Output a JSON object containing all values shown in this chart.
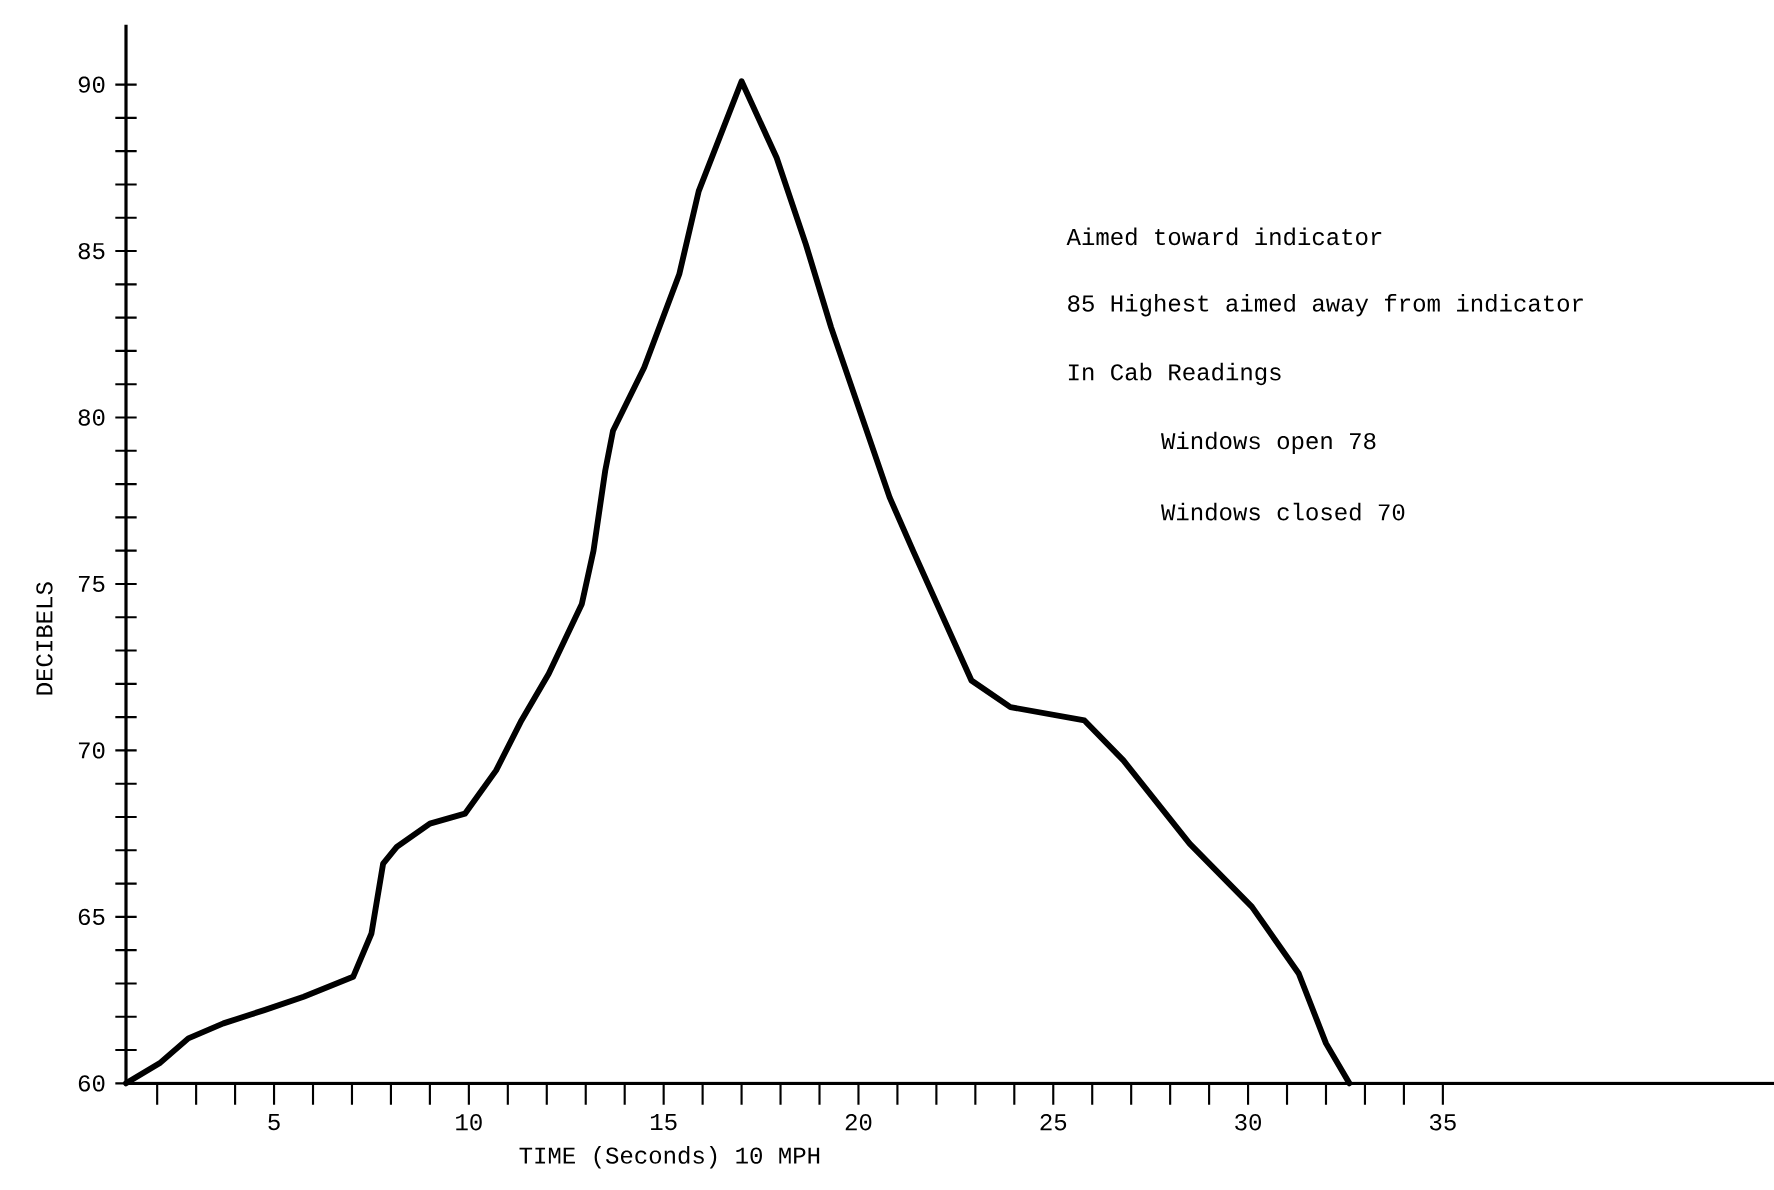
{
  "chart_data": {
    "type": "line",
    "xlabel": "TIME (Seconds)  10 MPH",
    "ylabel": "DECIBELS",
    "x": [
      1.2,
      2.06,
      2.8,
      3.7,
      4.75,
      5.76,
      7.03,
      7.5,
      7.8,
      8.15,
      9.0,
      9.9,
      10.7,
      11.35,
      12.05,
      12.9,
      13.2,
      13.5,
      13.7,
      14.5,
      15.4,
      15.9,
      17.0,
      17.9,
      18.65,
      19.3,
      20.8,
      21.4,
      22.9,
      23.9,
      25.8,
      26.8,
      28.5,
      30.1,
      31.3,
      32.0,
      32.6
    ],
    "series": [
      {
        "color": "#000000",
        "values": [
          60,
          60.6,
          61.35,
          61.8,
          62.2,
          62.6,
          63.2,
          64.5,
          66.6,
          67.1,
          67.8,
          68.1,
          69.4,
          70.9,
          72.3,
          74.4,
          76.0,
          78.4,
          79.6,
          81.5,
          84.3,
          86.8,
          90.1,
          87.8,
          85.2,
          82.7,
          77.6,
          76.0,
          72.1,
          71.3,
          70.9,
          69.7,
          67.2,
          65.3,
          63.3,
          61.2,
          60
        ]
      }
    ],
    "xlim": [
      1.2,
      43.5
    ],
    "ylim": [
      60,
      91.8
    ],
    "xticks": [
      {
        "value": 2,
        "label": null
      },
      {
        "value": 3,
        "label": null
      },
      {
        "value": 4,
        "label": null
      },
      5,
      {
        "value": 6,
        "label": null
      },
      {
        "value": 7,
        "label": null
      },
      {
        "value": 8,
        "label": null
      },
      {
        "value": 9,
        "label": null
      },
      10,
      {
        "value": 11,
        "label": null
      },
      {
        "value": 12,
        "label": null
      },
      {
        "value": 13,
        "label": null
      },
      {
        "value": 14,
        "label": null
      },
      15,
      {
        "value": 16,
        "label": null
      },
      {
        "value": 17,
        "label": null
      },
      {
        "value": 18,
        "label": null
      },
      {
        "value": 19,
        "label": null
      },
      20,
      {
        "value": 21,
        "label": null
      },
      {
        "value": 22,
        "label": null
      },
      {
        "value": 23,
        "label": null
      },
      {
        "value": 24,
        "label": null
      },
      25,
      {
        "value": 26,
        "label": null
      },
      {
        "value": 27,
        "label": null
      },
      {
        "value": 28,
        "label": null
      },
      {
        "value": 29,
        "label": null
      },
      30,
      {
        "value": 31,
        "label": null
      },
      {
        "value": 32,
        "label": null
      },
      {
        "value": 33,
        "label": null
      },
      {
        "value": 34,
        "label": null
      },
      35
    ],
    "yticks": [
      60,
      {
        "value": 61,
        "label": null
      },
      {
        "value": 62,
        "label": null
      },
      {
        "value": 63,
        "label": null
      },
      {
        "value": 64,
        "label": null
      },
      65,
      {
        "value": 66,
        "label": null
      },
      {
        "value": 67,
        "label": null
      },
      {
        "value": 68,
        "label": null
      },
      {
        "value": 69,
        "label": null
      },
      70,
      {
        "value": 71,
        "label": null
      },
      {
        "value": 72,
        "label": null
      },
      {
        "value": 73,
        "label": null
      },
      {
        "value": 74,
        "label": null
      },
      75,
      {
        "value": 76,
        "label": null
      },
      {
        "value": 77,
        "label": null
      },
      {
        "value": 78,
        "label": null
      },
      {
        "value": 79,
        "label": null
      },
      80,
      {
        "value": 81,
        "label": null
      },
      {
        "value": 82,
        "label": null
      },
      {
        "value": 83,
        "label": null
      },
      {
        "value": 84,
        "label": null
      },
      85,
      {
        "value": 86,
        "label": null
      },
      {
        "value": 87,
        "label": null
      },
      {
        "value": 88,
        "label": null
      },
      {
        "value": 89,
        "label": null
      },
      90
    ],
    "annotations": [
      "Aimed toward indicator",
      "85 Highest aimed away from indicator",
      "In Cab Readings",
      "     Windows open 78",
      "     Windows closed 70"
    ],
    "grid": false,
    "marker": "none",
    "line_style": "solid"
  }
}
